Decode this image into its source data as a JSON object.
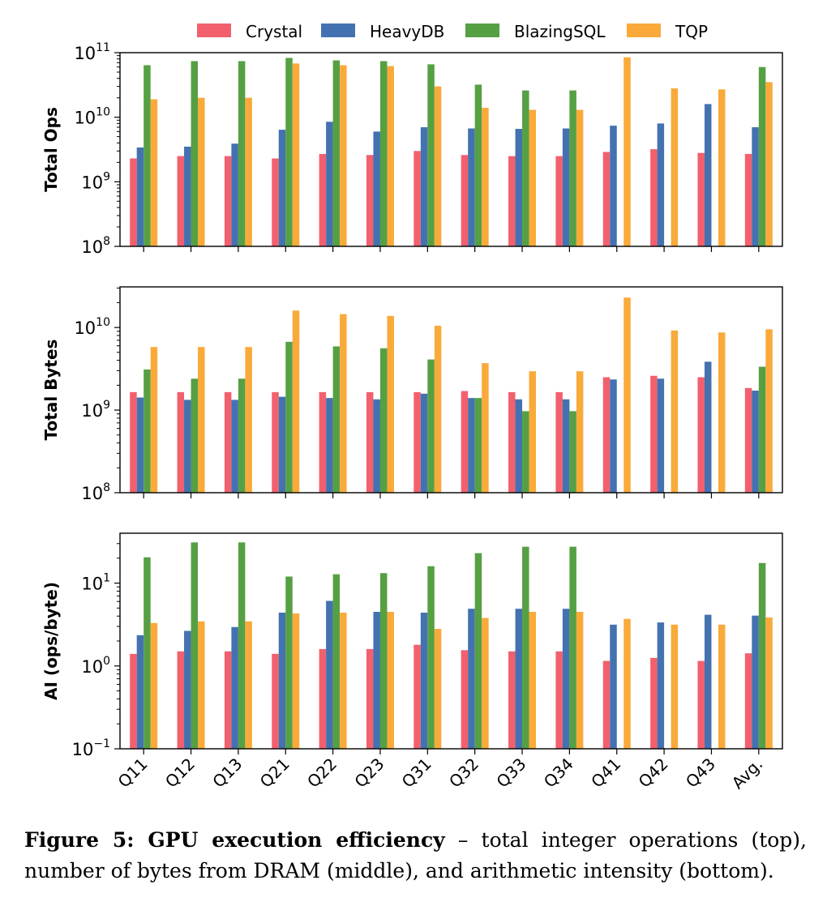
{
  "chart_data": {
    "type": "bar",
    "categories": [
      "Q11",
      "Q12",
      "Q13",
      "Q21",
      "Q22",
      "Q23",
      "Q31",
      "Q32",
      "Q33",
      "Q34",
      "Q41",
      "Q42",
      "Q43",
      "Avg."
    ],
    "legend": [
      "Crystal",
      "HeavyDB",
      "BlazingSQL",
      "TQP"
    ],
    "colors": [
      "#f2606e",
      "#4472b0",
      "#56a044",
      "#f9aa3a"
    ],
    "panels": [
      {
        "ylabel": "Total Ops",
        "yscale": "log",
        "ylim": [
          100000000.0,
          100000000000.0
        ],
        "ticks": [
          {
            "base": "10",
            "exp": "8"
          },
          {
            "base": "10",
            "exp": "9"
          },
          {
            "base": "10",
            "exp": "10"
          },
          {
            "base": "10",
            "exp": "11"
          }
        ],
        "series": [
          {
            "name": "Crystal",
            "values": [
              2300000000.0,
              2500000000.0,
              2500000000.0,
              2300000000.0,
              2700000000.0,
              2600000000.0,
              3000000000.0,
              2600000000.0,
              2500000000.0,
              2500000000.0,
              2900000000.0,
              3200000000.0,
              2800000000.0,
              2700000000.0
            ]
          },
          {
            "name": "HeavyDB",
            "values": [
              3400000000.0,
              3500000000.0,
              3900000000.0,
              6400000000.0,
              8500000000.0,
              6000000000.0,
              7000000000.0,
              6700000000.0,
              6600000000.0,
              6700000000.0,
              7400000000.0,
              8000000000.0,
              16000000000.0,
              7000000000.0
            ]
          },
          {
            "name": "BlazingSQL",
            "values": [
              64000000000.0,
              74000000000.0,
              74000000000.0,
              83000000000.0,
              76000000000.0,
              74000000000.0,
              66000000000.0,
              32000000000.0,
              26000000000.0,
              26000000000.0,
              null,
              null,
              null,
              60000000000.0
            ]
          },
          {
            "name": "TQP",
            "values": [
              19000000000.0,
              20000000000.0,
              20000000000.0,
              68000000000.0,
              64000000000.0,
              62000000000.0,
              30000000000.0,
              14000000000.0,
              13000000000.0,
              13000000000.0,
              85000000000.0,
              28000000000.0,
              27000000000.0,
              35000000000.0
            ]
          }
        ]
      },
      {
        "ylabel": "Total Bytes",
        "yscale": "log",
        "ylim": [
          100000000.0,
          31000000000.0
        ],
        "ticks": [
          {
            "base": "10",
            "exp": "8"
          },
          {
            "base": "10",
            "exp": "9"
          },
          {
            "base": "10",
            "exp": "10"
          }
        ],
        "series": [
          {
            "name": "Crystal",
            "values": [
              1650000000.0,
              1650000000.0,
              1650000000.0,
              1650000000.0,
              1650000000.0,
              1650000000.0,
              1650000000.0,
              1700000000.0,
              1650000000.0,
              1650000000.0,
              2500000000.0,
              2600000000.0,
              2500000000.0,
              1850000000.0
            ]
          },
          {
            "name": "HeavyDB",
            "values": [
              1420000000.0,
              1330000000.0,
              1330000000.0,
              1450000000.0,
              1400000000.0,
              1350000000.0,
              1580000000.0,
              1400000000.0,
              1350000000.0,
              1350000000.0,
              2350000000.0,
              2400000000.0,
              3850000000.0,
              1720000000.0
            ]
          },
          {
            "name": "BlazingSQL",
            "values": [
              3100000000.0,
              2400000000.0,
              2400000000.0,
              6700000000.0,
              5900000000.0,
              5600000000.0,
              4100000000.0,
              1400000000.0,
              970000000.0,
              970000000.0,
              null,
              null,
              null,
              3350000000.0
            ]
          },
          {
            "name": "TQP",
            "values": [
              5800000000.0,
              5800000000.0,
              5800000000.0,
              16000000000.0,
              14500000000.0,
              13800000000.0,
              10500000000.0,
              3700000000.0,
              2950000000.0,
              2950000000.0,
              23000000000.0,
              9200000000.0,
              8700000000.0,
              9500000000.0
            ]
          }
        ]
      },
      {
        "ylabel": "AI (ops/byte)",
        "yscale": "log",
        "ylim": [
          0.1,
          40
        ],
        "ticks": [
          {
            "base": "10",
            "exp": "−1"
          },
          {
            "base": "10",
            "exp": "0"
          },
          {
            "base": "10",
            "exp": "1"
          }
        ],
        "series": [
          {
            "name": "Crystal",
            "values": [
              1.4,
              1.5,
              1.5,
              1.4,
              1.6,
              1.6,
              1.8,
              1.55,
              1.5,
              1.5,
              1.15,
              1.25,
              1.15,
              1.42
            ]
          },
          {
            "name": "HeavyDB",
            "values": [
              2.35,
              2.65,
              2.95,
              4.4,
              6.1,
              4.5,
              4.4,
              4.9,
              4.9,
              4.9,
              3.15,
              3.35,
              4.15,
              4.05
            ]
          },
          {
            "name": "BlazingSQL",
            "values": [
              20.5,
              31,
              31,
              12,
              12.8,
              13.2,
              16,
              23,
              27.5,
              27.5,
              null,
              null,
              null,
              17.5
            ]
          },
          {
            "name": "TQP",
            "values": [
              3.3,
              3.45,
              3.45,
              4.3,
              4.4,
              4.5,
              2.8,
              3.8,
              4.5,
              4.5,
              3.7,
              3.15,
              3.15,
              3.85
            ]
          }
        ]
      }
    ]
  },
  "caption": {
    "bold": "Figure 5: GPU execution efficiency",
    "text": " – total integer operations (top), number of bytes from DRAM (middle), and arithmetic intensity (bottom)."
  }
}
